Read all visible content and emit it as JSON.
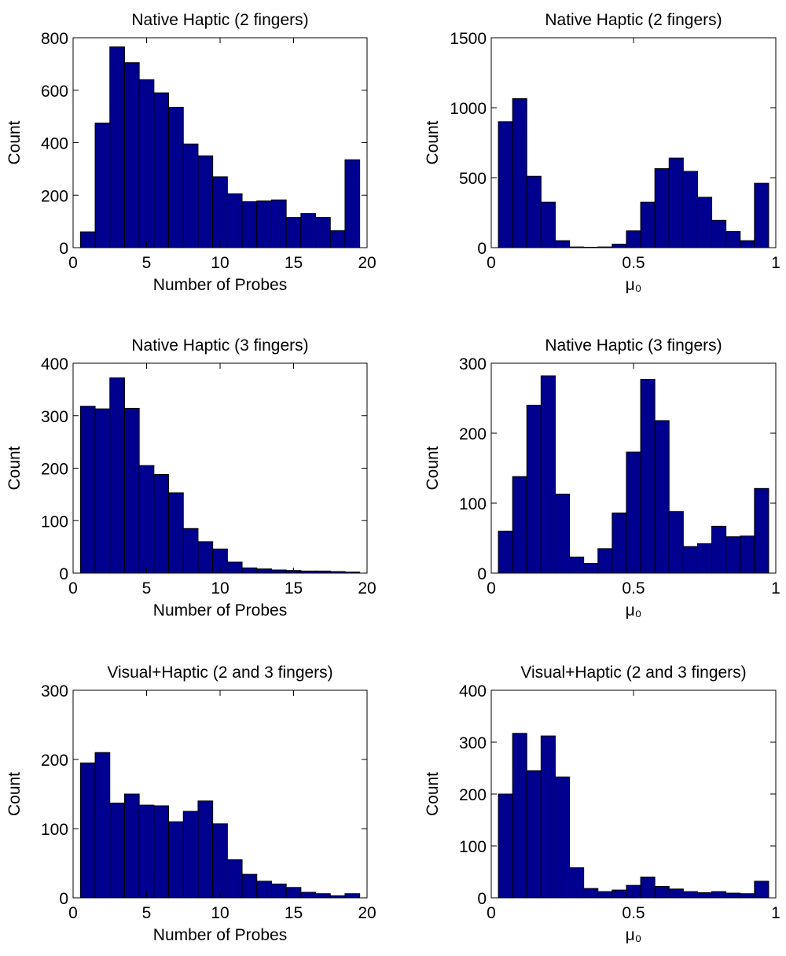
{
  "chart_data": [
    {
      "type": "histogram",
      "title": "Native Haptic (2 fingers)",
      "xlabel": "Number of Probes",
      "ylabel": "Count",
      "color": "#00008f",
      "bins": [
        0.5,
        1.5,
        2.5,
        3.5,
        4.5,
        5.5,
        6.5,
        7.5,
        8.5,
        9.5,
        10.5,
        11.5,
        12.5,
        13.5,
        14.5,
        15.5,
        16.5,
        17.5,
        18.5,
        19.5
      ],
      "values": [
        60,
        475,
        765,
        705,
        640,
        590,
        535,
        395,
        350,
        270,
        205,
        175,
        178,
        182,
        115,
        130,
        115,
        65,
        335
      ],
      "xlim": [
        0,
        20
      ],
      "xticks": [
        0,
        5,
        10,
        15,
        20
      ],
      "ylim": [
        0,
        800
      ],
      "yticks": [
        0,
        200,
        400,
        600,
        800
      ]
    },
    {
      "type": "histogram",
      "title": "Native Haptic (2 fingers)",
      "xlabel": "μ₀",
      "ylabel": "Count",
      "color": "#00008f",
      "bins": [
        0.025,
        0.075,
        0.125,
        0.175,
        0.225,
        0.275,
        0.325,
        0.375,
        0.425,
        0.475,
        0.525,
        0.575,
        0.625,
        0.675,
        0.725,
        0.775,
        0.825,
        0.875,
        0.925,
        0.975
      ],
      "values": [
        900,
        1065,
        510,
        325,
        50,
        5,
        3,
        5,
        25,
        120,
        325,
        565,
        640,
        545,
        360,
        195,
        115,
        50,
        460
      ],
      "xlim": [
        0,
        1
      ],
      "xticks": [
        0,
        0.5,
        1
      ],
      "ylim": [
        0,
        1500
      ],
      "yticks": [
        0,
        500,
        1000,
        1500
      ]
    },
    {
      "type": "histogram",
      "title": "Native Haptic (3 fingers)",
      "xlabel": "Number of Probes",
      "ylabel": "Count",
      "color": "#00008f",
      "bins": [
        0.5,
        1.5,
        2.5,
        3.5,
        4.5,
        5.5,
        6.5,
        7.5,
        8.5,
        9.5,
        10.5,
        11.5,
        12.5,
        13.5,
        14.5,
        15.5,
        16.5,
        17.5,
        18.5,
        19.5
      ],
      "values": [
        318,
        313,
        372,
        314,
        205,
        188,
        153,
        85,
        60,
        46,
        21,
        10,
        8,
        6,
        5,
        4,
        4,
        3,
        2
      ],
      "xlim": [
        0,
        20
      ],
      "xticks": [
        0,
        5,
        10,
        15,
        20
      ],
      "ylim": [
        0,
        400
      ],
      "yticks": [
        0,
        100,
        200,
        300,
        400
      ]
    },
    {
      "type": "histogram",
      "title": "Native Haptic (3 fingers)",
      "xlabel": "μ₀",
      "ylabel": "Count",
      "color": "#00008f",
      "bins": [
        0.025,
        0.075,
        0.125,
        0.175,
        0.225,
        0.275,
        0.325,
        0.375,
        0.425,
        0.475,
        0.525,
        0.575,
        0.625,
        0.675,
        0.725,
        0.775,
        0.825,
        0.875,
        0.925,
        0.975
      ],
      "values": [
        60,
        138,
        240,
        282,
        113,
        23,
        14,
        35,
        86,
        173,
        277,
        218,
        88,
        38,
        42,
        67,
        52,
        53,
        121
      ],
      "xlim": [
        0,
        1
      ],
      "xticks": [
        0,
        0.5,
        1
      ],
      "ylim": [
        0,
        300
      ],
      "yticks": [
        0,
        100,
        200,
        300
      ]
    },
    {
      "type": "histogram",
      "title": "Visual+Haptic (2 and 3 fingers)",
      "xlabel": "Number of Probes",
      "ylabel": "Count",
      "color": "#00008f",
      "bins": [
        0.5,
        1.5,
        2.5,
        3.5,
        4.5,
        5.5,
        6.5,
        7.5,
        8.5,
        9.5,
        10.5,
        11.5,
        12.5,
        13.5,
        14.5,
        15.5,
        16.5,
        17.5,
        18.5,
        19.5
      ],
      "values": [
        195,
        210,
        137,
        150,
        134,
        133,
        110,
        125,
        140,
        107,
        55,
        34,
        24,
        20,
        15,
        8,
        6,
        3,
        6
      ],
      "xlim": [
        0,
        20
      ],
      "xticks": [
        0,
        5,
        10,
        15,
        20
      ],
      "ylim": [
        0,
        300
      ],
      "yticks": [
        0,
        100,
        200,
        300
      ]
    },
    {
      "type": "histogram",
      "title": "Visual+Haptic (2 and 3 fingers)",
      "xlabel": "μ₀",
      "ylabel": "Count",
      "color": "#00008f",
      "bins": [
        0.025,
        0.075,
        0.125,
        0.175,
        0.225,
        0.275,
        0.325,
        0.375,
        0.425,
        0.475,
        0.525,
        0.575,
        0.625,
        0.675,
        0.725,
        0.775,
        0.825,
        0.875,
        0.925,
        0.975
      ],
      "values": [
        200,
        317,
        245,
        312,
        233,
        58,
        18,
        12,
        15,
        24,
        40,
        22,
        17,
        12,
        10,
        12,
        9,
        8,
        32
      ],
      "xlim": [
        0,
        1
      ],
      "xticks": [
        0,
        0.5,
        1
      ],
      "ylim": [
        0,
        400
      ],
      "yticks": [
        0,
        100,
        200,
        300,
        400
      ]
    }
  ]
}
